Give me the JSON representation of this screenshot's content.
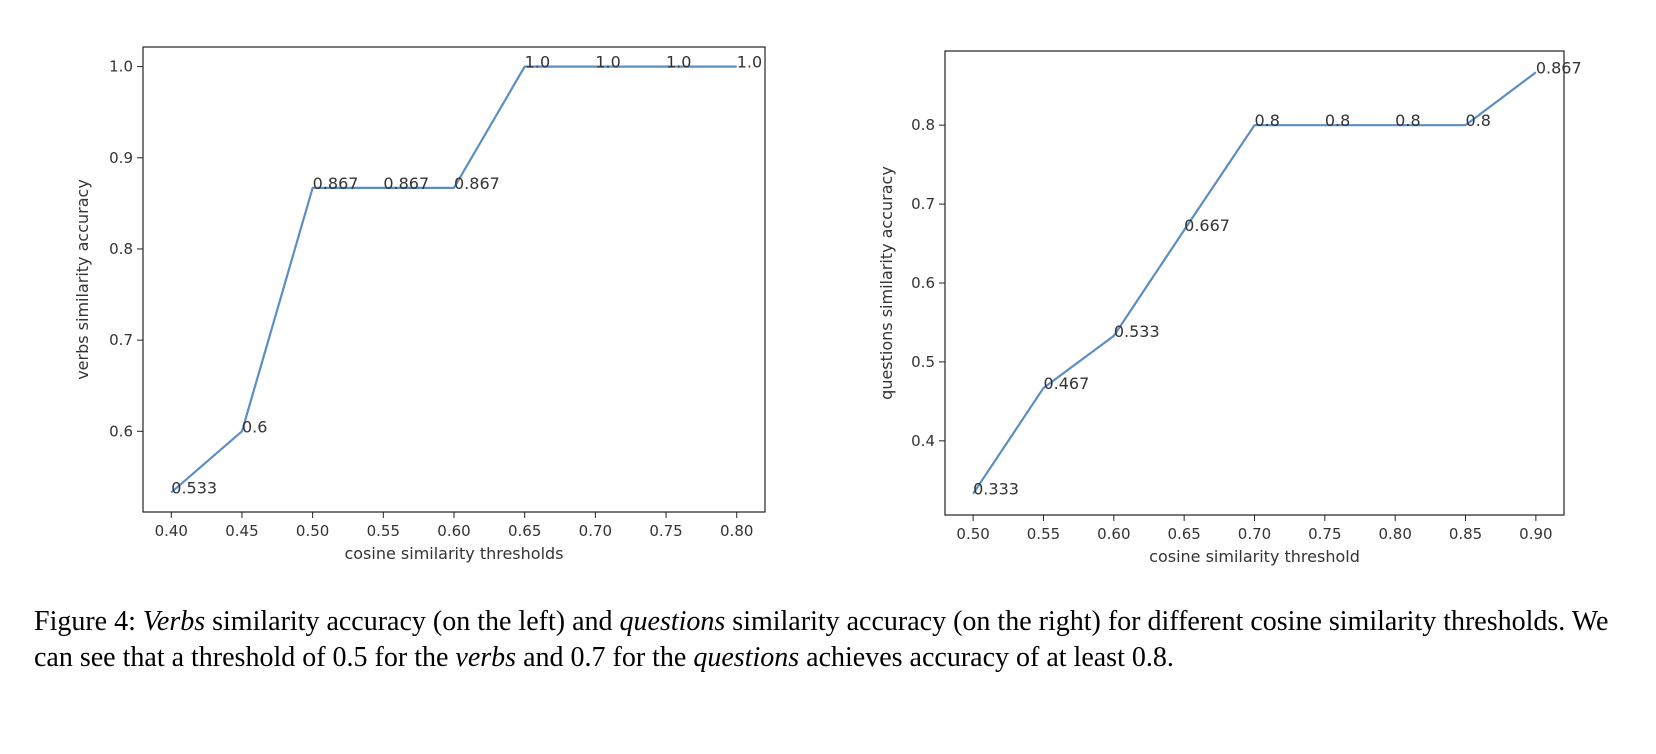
{
  "figure": {
    "caption": {
      "parts": [
        {
          "text": "Figure 4: ",
          "italic": false
        },
        {
          "text": "Verbs",
          "italic": true
        },
        {
          "text": " similarity accuracy (on the left) and ",
          "italic": false
        },
        {
          "text": "questions",
          "italic": true
        },
        {
          "text": " similarity accuracy (on the right) for different cosine similarity thresholds. We can see that a threshold of 0.5 for the ",
          "italic": false
        },
        {
          "text": "verbs",
          "italic": true
        },
        {
          "text": " and 0.7 for the ",
          "italic": false
        },
        {
          "text": "questions",
          "italic": true
        },
        {
          "text": " achieves accuracy of at least 0.8.",
          "italic": false
        }
      ]
    }
  },
  "chart_data": [
    {
      "type": "line",
      "title": "",
      "xlabel": "cosine similarity thresholds",
      "ylabel": "verbs similarity accuracy",
      "x": [
        0.4,
        0.45,
        0.5,
        0.55,
        0.6,
        0.65,
        0.7,
        0.75,
        0.8
      ],
      "y": [
        0.533,
        0.6,
        0.867,
        0.867,
        0.867,
        1.0,
        1.0,
        1.0,
        1.0
      ],
      "point_labels": [
        "0.533",
        "0.6",
        "0.867",
        "0.867",
        "0.867",
        "1.0",
        "1.0",
        "1.0",
        "1.0"
      ],
      "xticks": [
        "0.40",
        "0.45",
        "0.50",
        "0.55",
        "0.60",
        "0.65",
        "0.70",
        "0.75",
        "0.80"
      ],
      "yticks": [
        "0.6",
        "0.7",
        "0.8",
        "0.9",
        "1.0"
      ],
      "xlim": [
        0.38,
        0.82
      ],
      "ylim": [
        0.5115,
        1.0215
      ],
      "grid": false,
      "line_color": "#5b8fc4"
    },
    {
      "type": "line",
      "title": "",
      "xlabel": "cosine similarity threshold",
      "ylabel": "questions similarity accuracy",
      "x": [
        0.5,
        0.55,
        0.6,
        0.65,
        0.7,
        0.75,
        0.8,
        0.85,
        0.9
      ],
      "y": [
        0.333,
        0.467,
        0.533,
        0.667,
        0.8,
        0.8,
        0.8,
        0.8,
        0.867
      ],
      "point_labels": [
        "0.333",
        "0.467",
        "0.533",
        "0.667",
        "0.8",
        "0.8",
        "0.8",
        "0.8",
        "0.867"
      ],
      "xticks": [
        "0.50",
        "0.55",
        "0.60",
        "0.65",
        "0.70",
        "0.75",
        "0.80",
        "0.85",
        "0.90"
      ],
      "yticks": [
        "0.4",
        "0.5",
        "0.6",
        "0.7",
        "0.8"
      ],
      "xlim": [
        0.48,
        0.92
      ],
      "ylim": [
        0.306,
        0.894
      ],
      "grid": false,
      "line_color": "#5b8fc4"
    }
  ]
}
